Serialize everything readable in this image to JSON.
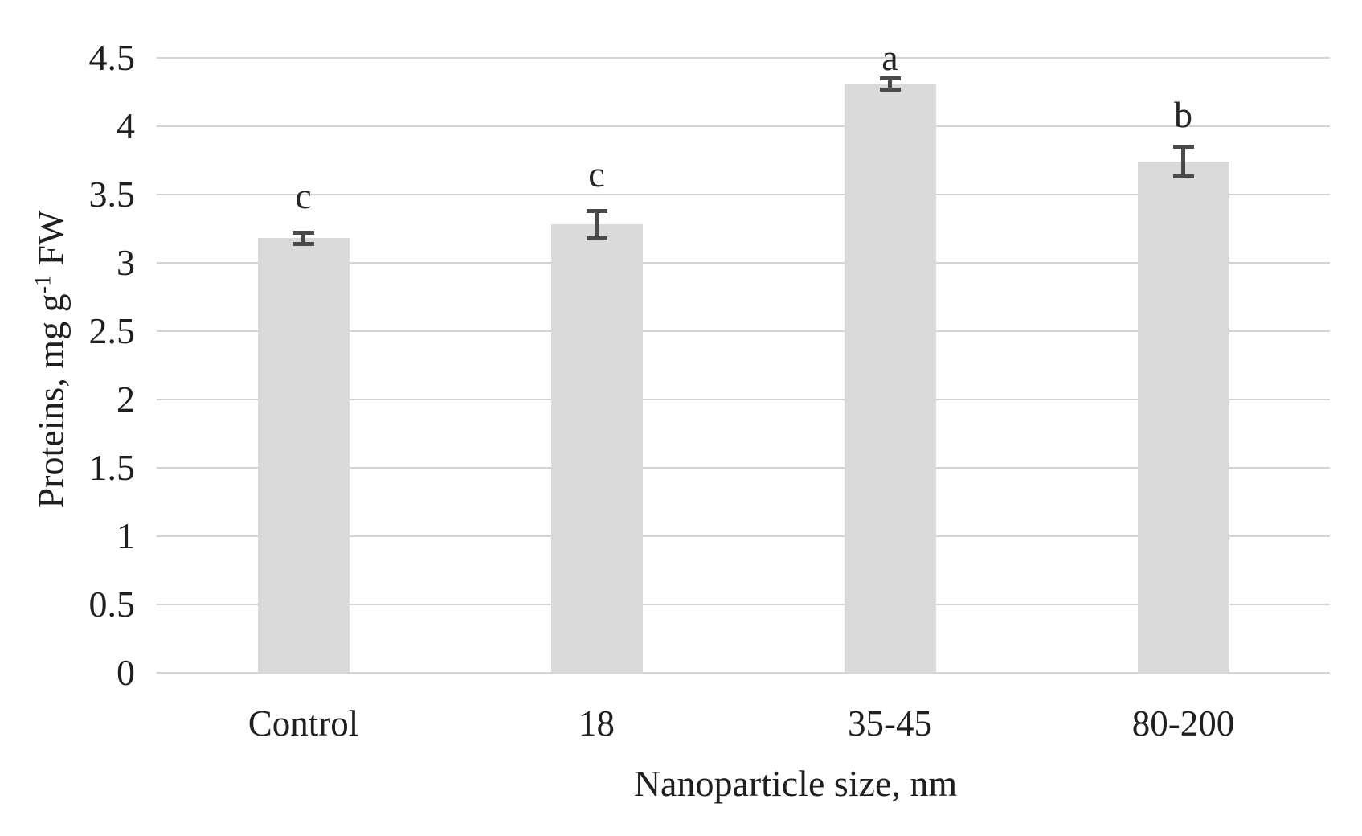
{
  "chart_data": {
    "type": "bar",
    "title": "",
    "categories": [
      "Control",
      "18",
      "35-45",
      "80-200"
    ],
    "values": [
      3.18,
      3.28,
      4.31,
      3.74
    ],
    "errors": [
      0.04,
      0.1,
      0.04,
      0.11
    ],
    "sig_letters": [
      "c",
      "c",
      "a",
      "b"
    ],
    "sig_letter_y": [
      3.49,
      3.65,
      4.5,
      4.08
    ],
    "xlabel": "Nanoparticle size, nm",
    "ylabel": "Proteins, mg g-1 FW",
    "ylabel_parts": {
      "main": "Proteins, mg g",
      "sup": "-1",
      "tail": " FW"
    },
    "ytick_labels": [
      "0",
      "0.5",
      "1",
      "1.5",
      "2",
      "2.5",
      "3",
      "3.5",
      "4",
      "4.5"
    ],
    "yticks": [
      0,
      0.5,
      1,
      1.5,
      2,
      2.5,
      3,
      3.5,
      4,
      4.5
    ],
    "ylim": [
      0,
      4.5
    ],
    "grid": true,
    "legend_position": "none",
    "bar_color": "#dadada",
    "gridline_color": "#d4d4d4",
    "error_bar_color": "#4a4a4a",
    "text_color": "#1f1f1f"
  }
}
